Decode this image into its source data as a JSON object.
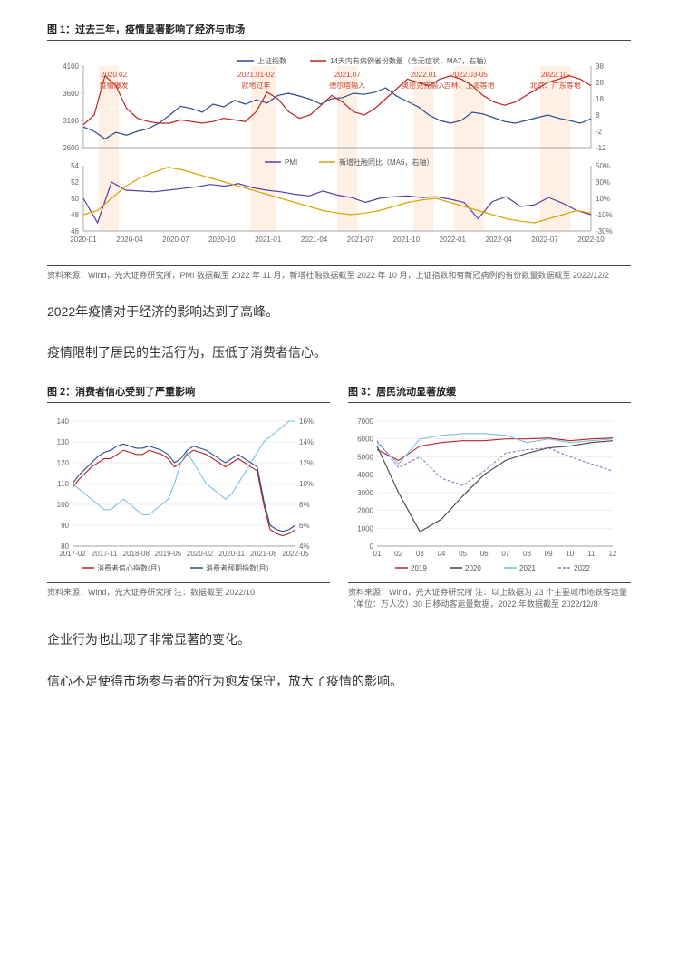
{
  "figure1": {
    "title": "图 1：过去三年，疫情显著影响了经济与市场",
    "source": "资料来源：Wind，光大证券研究所，PMI 数据截至 2022 年 11 月，新增社融数据截至 2022 年 10 月，上证指数和有新冠病例的省份数量数据截至 2022/12/2",
    "top": {
      "legend": [
        "上证指数",
        "14天内有病例省份数量（含无症状，MA7，右轴）"
      ],
      "legend_colors": [
        "#2b4b8f",
        "#b22"
      ],
      "y_left": {
        "min": 2600,
        "max": 4100,
        "step": 500,
        "ticks": [
          2600,
          3100,
          3600,
          4100
        ]
      },
      "y_right": {
        "min": -12,
        "max": 38,
        "step": 10,
        "ticks": [
          -12,
          -2,
          8,
          18,
          28,
          38
        ]
      },
      "x_labels": [
        "2020-01",
        "2020-04",
        "2020-07",
        "2020-10",
        "2021-01",
        "2021-04",
        "2021-07",
        "2021-10",
        "2022-01",
        "2022-04",
        "2022-07",
        "2022-10"
      ],
      "annotations": [
        {
          "x": 0.06,
          "label1": "2020.02",
          "label2": "疫情爆发"
        },
        {
          "x": 0.34,
          "label1": "2021.01-02",
          "label2": "就地过年"
        },
        {
          "x": 0.52,
          "label1": "2021.07",
          "label2": "德尔塔输入"
        },
        {
          "x": 0.67,
          "label1": "2022.01",
          "label2": "奥密克戎输入"
        },
        {
          "x": 0.76,
          "label1": "2022.03-05",
          "label2": "吉林、上海等地"
        },
        {
          "x": 0.93,
          "label1": "2022.10-",
          "label2": "北京、广东等地"
        }
      ],
      "highlights": [
        {
          "x": 0.03,
          "w": 0.04
        },
        {
          "x": 0.33,
          "w": 0.05
        },
        {
          "x": 0.5,
          "w": 0.04
        },
        {
          "x": 0.65,
          "w": 0.04
        },
        {
          "x": 0.73,
          "w": 0.06
        },
        {
          "x": 0.9,
          "w": 0.06
        }
      ],
      "series_a": {
        "color": "#2b4b8f",
        "width": 1.2,
        "data": [
          2980,
          2900,
          2760,
          2880,
          2830,
          2900,
          2950,
          3050,
          3200,
          3360,
          3320,
          3250,
          3400,
          3350,
          3470,
          3400,
          3480,
          3420,
          3560,
          3600,
          3550,
          3490,
          3400,
          3500,
          3520,
          3600,
          3580,
          3620,
          3700,
          3550,
          3450,
          3350,
          3200,
          3100,
          3050,
          3100,
          3250,
          3220,
          3150,
          3080,
          3050,
          3100,
          3150,
          3200,
          3140,
          3100,
          3050,
          3130
        ]
      },
      "series_b": {
        "color": "#b22",
        "width": 1.2,
        "data": [
          2,
          8,
          32,
          26,
          12,
          6,
          4,
          3,
          3,
          5,
          4,
          3,
          4,
          6,
          5,
          4,
          10,
          22,
          18,
          10,
          6,
          8,
          14,
          20,
          16,
          10,
          8,
          12,
          18,
          24,
          30,
          28,
          26,
          30,
          32,
          30,
          26,
          20,
          16,
          14,
          16,
          20,
          24,
          28,
          30,
          32,
          30,
          26
        ]
      }
    },
    "bottom": {
      "legend": [
        "PMI",
        "新增社融同比（MA6，右轴）"
      ],
      "legend_colors": [
        "#5a3da5",
        "#d9a300"
      ],
      "y_left": {
        "min": 46,
        "max": 54,
        "step": 2,
        "ticks": [
          46,
          48,
          50,
          52,
          54
        ]
      },
      "y_right": {
        "min": -30,
        "max": 50,
        "step": 20,
        "ticks": [
          -30,
          -10,
          10,
          30,
          50
        ]
      },
      "series_a": {
        "color": "#5a3da5",
        "width": 1.2,
        "data": [
          50,
          47,
          52,
          51,
          50.9,
          50.8,
          51,
          51.2,
          51.4,
          51.7,
          51.5,
          51.8,
          51.3,
          51.0,
          50.8,
          50.5,
          50.3,
          50.9,
          50.4,
          50.1,
          49.5,
          50.0,
          50.2,
          50.3,
          50.1,
          50.2,
          49.9,
          49.5,
          47.5,
          49.6,
          50.2,
          49.0,
          49.2,
          50.1,
          49.4,
          48.5,
          48.0
        ]
      },
      "series_b": {
        "color": "#d9a300",
        "width": 1.2,
        "data": [
          -10,
          -5,
          10,
          25,
          35,
          42,
          48,
          45,
          40,
          35,
          30,
          25,
          20,
          15,
          10,
          5,
          0,
          -5,
          -8,
          -10,
          -8,
          -5,
          0,
          5,
          8,
          10,
          5,
          0,
          -5,
          -10,
          -15,
          -18,
          -20,
          -15,
          -10,
          -5,
          -8
        ]
      }
    }
  },
  "para1": "2022年疫情对于经济的影响达到了高峰。",
  "para2": "疫情限制了居民的生活行为，压低了消费者信心。",
  "figure2": {
    "title": "图 2：消费者信心受到了严重影响",
    "source": "资料来源：Wind，光大证券研究所 注：数据截至 2022/10",
    "legend": [
      "消费者信心指数(月)",
      "消费者预期指数(月)",
      "金融机构储蓄存款余额同比(右，%)"
    ],
    "legend_colors": [
      "#b22",
      "#2b4b8f",
      "#7bbfe0"
    ],
    "y_left": {
      "min": 80,
      "max": 140,
      "step": 10,
      "ticks": [
        80,
        90,
        100,
        110,
        120,
        130,
        140
      ]
    },
    "y_right": {
      "min": 4,
      "max": 16,
      "step": 2,
      "ticks": [
        4,
        6,
        8,
        10,
        12,
        14,
        16
      ]
    },
    "x_labels": [
      "2017-02",
      "2017-11",
      "2018-08",
      "2019-05",
      "2020-02",
      "2020-11",
      "2021-08",
      "2022-05"
    ],
    "series_a": {
      "color": "#b22",
      "width": 1.1,
      "data": [
        108,
        112,
        115,
        118,
        120,
        122,
        122,
        124,
        126,
        125,
        124,
        124,
        126,
        125,
        124,
        122,
        118,
        120,
        124,
        126,
        125,
        124,
        122,
        120,
        118,
        120,
        122,
        120,
        118,
        116,
        100,
        88,
        86,
        85,
        86,
        88
      ]
    },
    "series_b": {
      "color": "#2b4b8f",
      "width": 1.1,
      "data": [
        110,
        114,
        117,
        120,
        123,
        125,
        126,
        128,
        129,
        128,
        127,
        127,
        128,
        127,
        126,
        124,
        120,
        122,
        126,
        128,
        127,
        126,
        124,
        122,
        120,
        122,
        124,
        122,
        120,
        118,
        102,
        90,
        88,
        87,
        88,
        90
      ]
    },
    "series_c": {
      "color": "#7bbfe0",
      "width": 1.1,
      "data": [
        10,
        9.5,
        9,
        8.5,
        8,
        7.5,
        7.5,
        8,
        8.5,
        8,
        7.5,
        7,
        7,
        7.5,
        8,
        8.5,
        10,
        12,
        13,
        12,
        11,
        10,
        9.5,
        9,
        8.5,
        9,
        10,
        11,
        12,
        13,
        14,
        14.5,
        15,
        15.5,
        16,
        16
      ]
    }
  },
  "figure3": {
    "title": "图 3：居民流动显著放缓",
    "source": "资料来源：Wind，光大证券研究所 注：以上数据为 23 个主要城市地铁客运量（单位：万人次）30 日移动客运量数据，2022 年数据截至 2022/12/8",
    "legend": [
      "2019",
      "2020",
      "2021",
      "2022"
    ],
    "legend_colors": [
      "#b22",
      "#444",
      "#7bbfe0",
      "#9a6fbf"
    ],
    "y": {
      "min": 0,
      "max": 7000,
      "step": 1000,
      "ticks": [
        0,
        1000,
        2000,
        3000,
        4000,
        5000,
        6000,
        7000
      ]
    },
    "x_labels": [
      "01",
      "02",
      "03",
      "04",
      "05",
      "06",
      "07",
      "08",
      "09",
      "10",
      "11",
      "12"
    ],
    "series": [
      {
        "color": "#b22",
        "dash": "",
        "width": 1.1,
        "data": [
          5400,
          4800,
          5600,
          5800,
          5900,
          5900,
          6000,
          6000,
          6050,
          5900,
          6000,
          6050
        ]
      },
      {
        "color": "#444",
        "dash": "",
        "width": 1.1,
        "data": [
          5600,
          3000,
          800,
          1500,
          2800,
          4000,
          4800,
          5200,
          5500,
          5600,
          5800,
          5900
        ]
      },
      {
        "color": "#7bbfe0",
        "dash": "",
        "width": 1.1,
        "data": [
          5800,
          4600,
          6000,
          6200,
          6300,
          6300,
          6200,
          5800,
          6000,
          5800,
          5900,
          6000
        ]
      },
      {
        "color": "#9a6fbf",
        "dash": "3,2",
        "width": 1.1,
        "data": [
          5900,
          4400,
          5000,
          3800,
          3400,
          4200,
          5200,
          5400,
          5500,
          5000,
          4600,
          4200
        ]
      }
    ]
  },
  "para3": "企业行为也出现了非常显著的变化。",
  "para4": "信心不足使得市场参与者的行为愈发保守，放大了疫情的影响。"
}
